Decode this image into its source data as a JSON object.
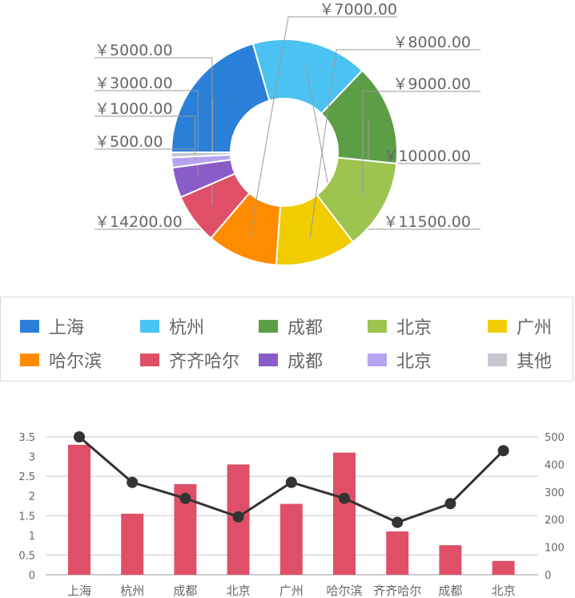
{
  "chart_data": [
    {
      "type": "pie",
      "variant": "donut",
      "labels_position": "outside",
      "legend_position": "bottom",
      "slices": [
        {
          "name": "上海",
          "value": 14200,
          "label": "￥14200.00",
          "color": "#2a7fd9"
        },
        {
          "name": "杭州",
          "value": 11500,
          "label": "￥11500.00",
          "color": "#4ac3f3"
        },
        {
          "name": "成都",
          "value": 10000,
          "label": "￥10000.00",
          "color": "#5c9e45"
        },
        {
          "name": "北京",
          "value": 9000,
          "label": "￥9000.00",
          "color": "#9cc44f"
        },
        {
          "name": "广州",
          "value": 8000,
          "label": "￥8000.00",
          "color": "#f0cc00"
        },
        {
          "name": "哈尔滨",
          "value": 7000,
          "label": "￥7000.00",
          "color": "#ff8c00"
        },
        {
          "name": "齐齐哈尔",
          "value": 5000,
          "label": "￥5000.00",
          "color": "#df5068"
        },
        {
          "name": "成都",
          "value": 3000,
          "label": "￥3000.00",
          "color": "#8a5cc8"
        },
        {
          "name": "北京",
          "value": 1000,
          "label": "￥1000.00",
          "color": "#b6a3f0"
        },
        {
          "name": "其他",
          "value": 500,
          "label": "￥500.00",
          "color": "#c4c6d0"
        }
      ]
    },
    {
      "type": "bar",
      "combo_with": "line",
      "grid": true,
      "categories": [
        "上海",
        "杭州",
        "成都",
        "北京",
        "广州",
        "哈尔滨",
        "齐齐哈尔",
        "成都",
        "北京"
      ],
      "series": [
        {
          "kind": "bar",
          "axis": "left",
          "color": "#df5068",
          "values": [
            3.3,
            1.55,
            2.3,
            2.8,
            1.8,
            3.1,
            1.1,
            0.75,
            0.35
          ]
        },
        {
          "kind": "line",
          "axis": "right",
          "color": "#333333",
          "values": [
            500,
            335,
            277,
            210,
            335,
            277,
            190,
            258,
            450
          ]
        }
      ],
      "left_axis": {
        "ticks": [
          "0",
          "0.5",
          "1",
          "1.5",
          "2",
          "2.5",
          "3",
          "3.5"
        ],
        "ylim": [
          0,
          3.5
        ]
      },
      "right_axis": {
        "ticks": [
          "0",
          "100",
          "200",
          "300",
          "400",
          "500"
        ],
        "ylim": [
          0,
          500
        ]
      }
    }
  ]
}
